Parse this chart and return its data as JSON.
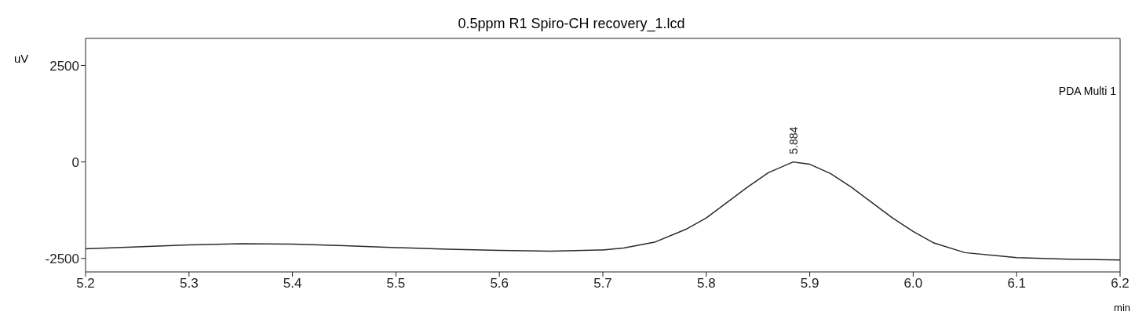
{
  "chart_data": {
    "type": "line",
    "title": "0.5ppm R1 Spiro-CH recovery_1.lcd",
    "xlabel": "min",
    "ylabel": "uV",
    "annotations": [
      {
        "text": "5.884",
        "x": 5.884,
        "y": 0
      },
      "PDA Multi 1"
    ],
    "x": [
      5.2,
      5.25,
      5.3,
      5.35,
      5.4,
      5.45,
      5.5,
      5.55,
      5.6,
      5.65,
      5.7,
      5.72,
      5.75,
      5.78,
      5.8,
      5.82,
      5.84,
      5.86,
      5.884,
      5.9,
      5.92,
      5.94,
      5.96,
      5.98,
      6.0,
      6.02,
      6.05,
      6.1,
      6.15,
      6.2
    ],
    "series": [
      {
        "color": "#2a2a2a",
        "values": [
          -2250,
          -2200,
          -2150,
          -2120,
          -2130,
          -2170,
          -2220,
          -2260,
          -2290,
          -2310,
          -2280,
          -2230,
          -2080,
          -1750,
          -1450,
          -1050,
          -650,
          -280,
          0,
          -60,
          -300,
          -650,
          -1050,
          -1450,
          -1800,
          -2100,
          -2350,
          -2480,
          -2520,
          -2540
        ]
      }
    ],
    "xlim": [
      5.2,
      6.2
    ],
    "xticks": [
      5.2,
      5.3,
      5.4,
      5.5,
      5.6,
      5.7,
      5.8,
      5.9,
      {
        "value": 6,
        "label": "6.0"
      },
      6.1,
      6.2
    ],
    "ylim": [
      -2850,
      3200
    ],
    "yticks": [
      -2500,
      0,
      2500
    ],
    "grid": false,
    "marker": "none",
    "line_style": "solid"
  }
}
